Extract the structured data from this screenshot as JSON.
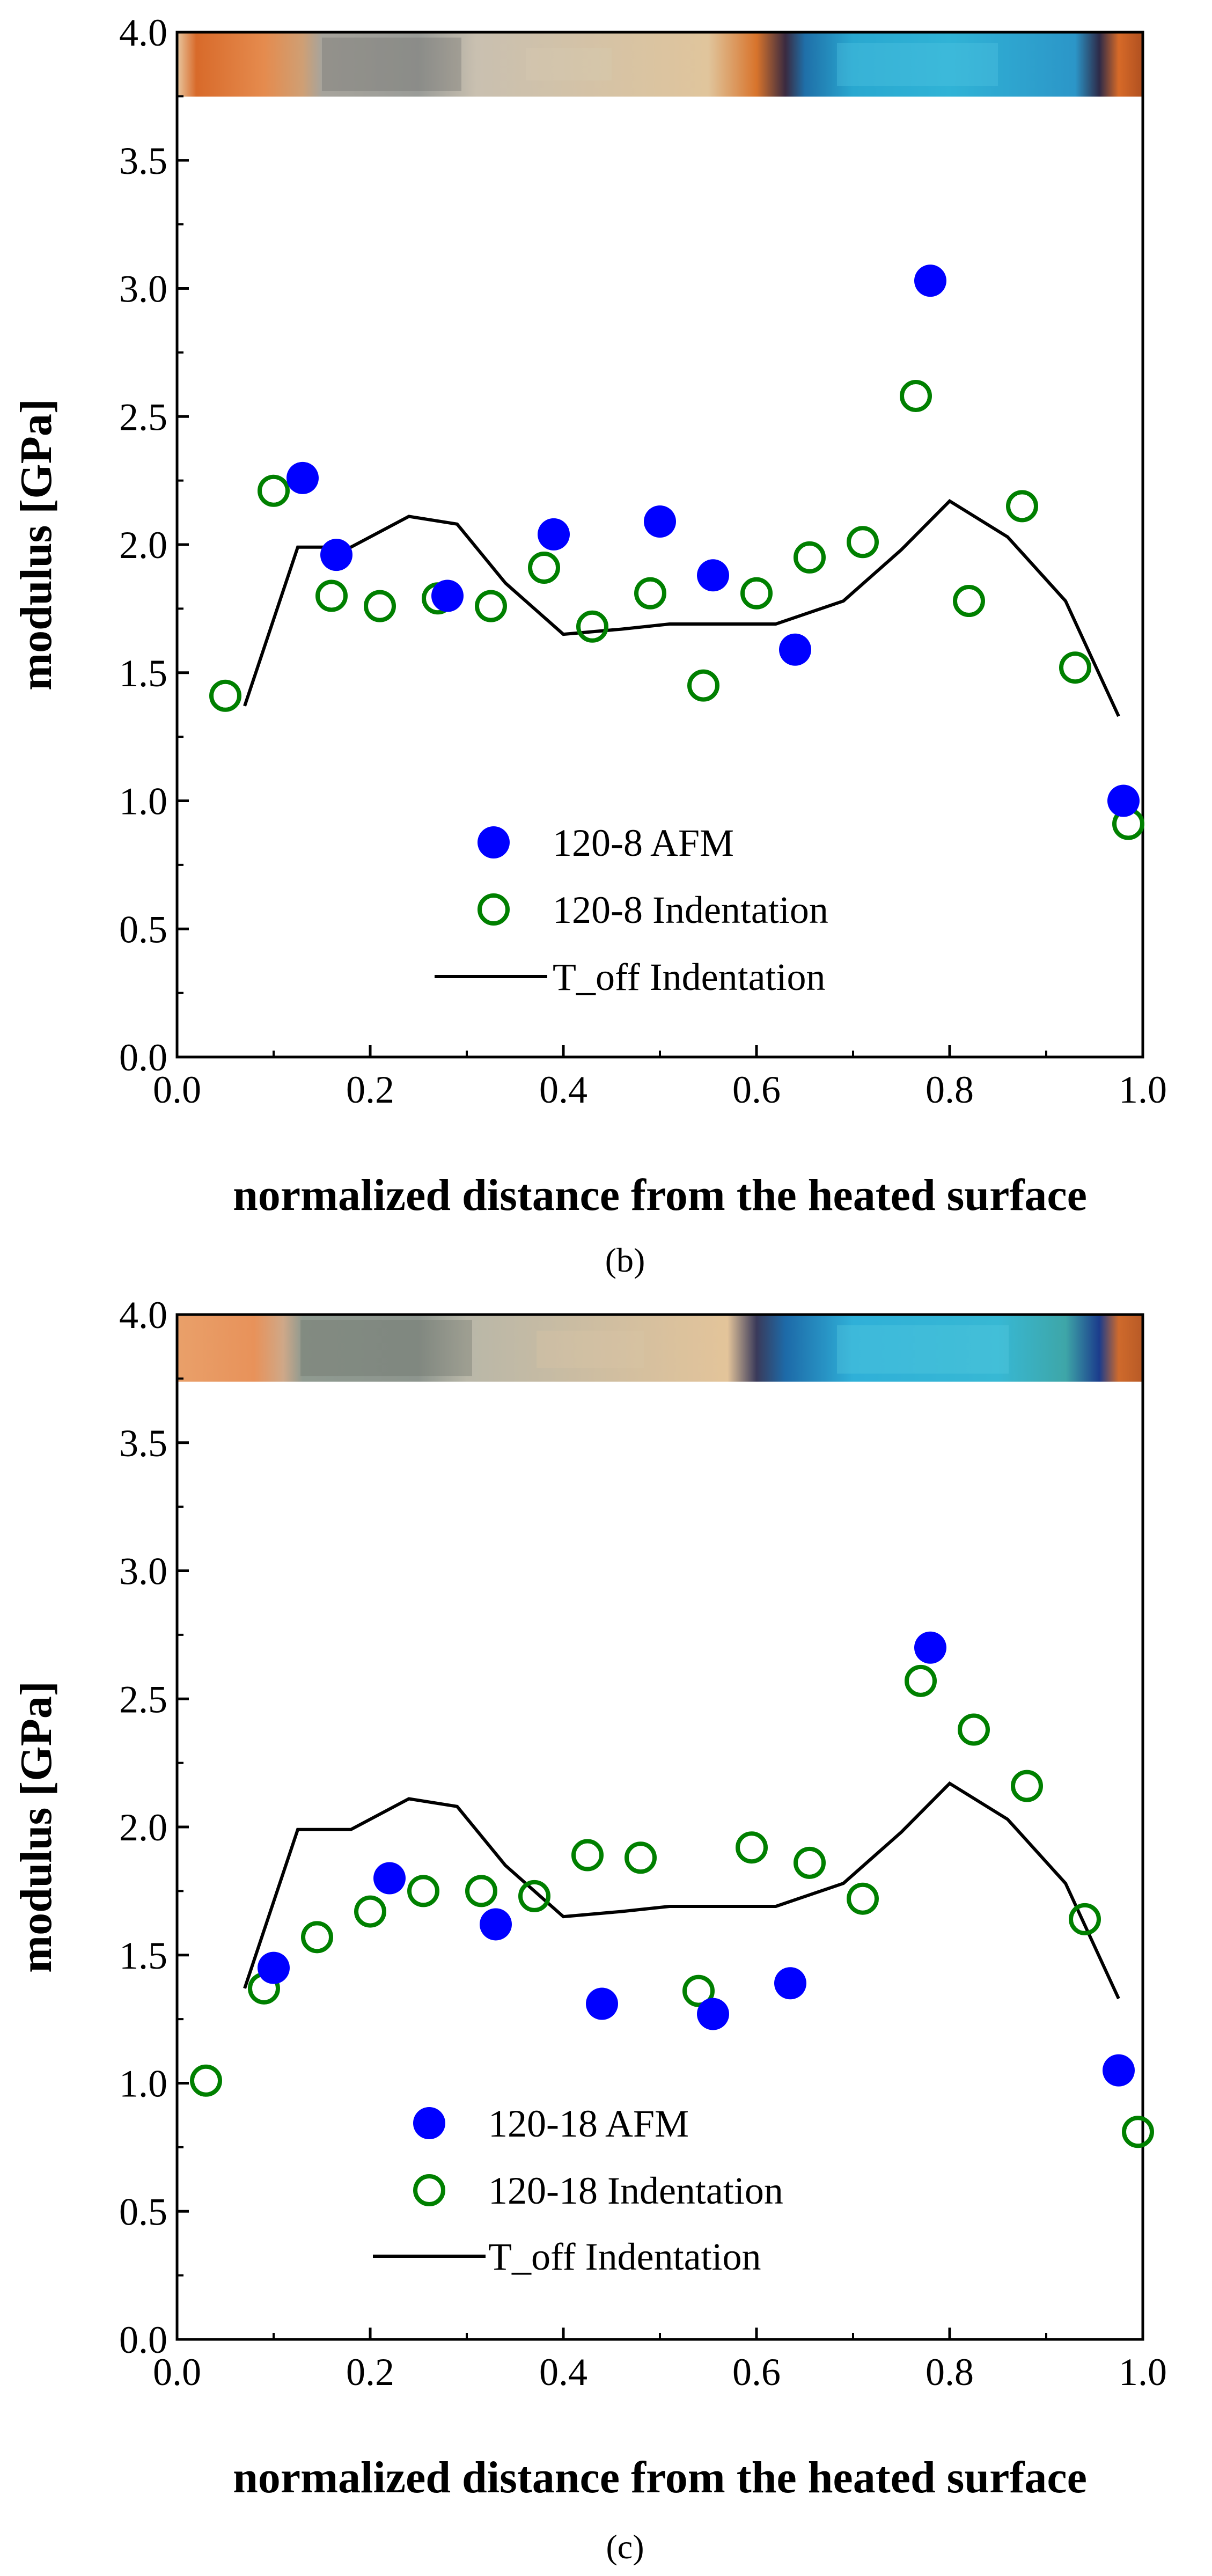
{
  "chart_data": [
    {
      "type": "scatter",
      "panel_label": "(b)",
      "xlabel": "normalized distance from the heated surface",
      "ylabel": "modulus [GPa]",
      "xlim": [
        0.0,
        1.0
      ],
      "ylim": [
        0.0,
        4.0
      ],
      "xticks": [
        "0.0",
        "0.2",
        "0.4",
        "0.6",
        "0.8",
        "1.0"
      ],
      "yticks": [
        "0.0",
        "0.5",
        "1.0",
        "1.5",
        "2.0",
        "2.5",
        "3.0",
        "3.5",
        "4.0"
      ],
      "legend_position": "lower-center",
      "series": [
        {
          "name": "120-8 AFM",
          "marker": "filled-circle",
          "color": "#0000ff",
          "x": [
            0.13,
            0.165,
            0.28,
            0.39,
            0.5,
            0.555,
            0.64,
            0.78,
            0.98
          ],
          "y": [
            2.26,
            1.96,
            1.8,
            2.04,
            2.09,
            1.88,
            1.59,
            3.03,
            1.0
          ]
        },
        {
          "name": "120-8 Indentation",
          "marker": "open-circle",
          "color": "#008000",
          "x": [
            0.05,
            0.1,
            0.16,
            0.21,
            0.27,
            0.325,
            0.38,
            0.43,
            0.49,
            0.545,
            0.6,
            0.655,
            0.71,
            0.765,
            0.82,
            0.875,
            0.93,
            0.985
          ],
          "y": [
            1.41,
            2.21,
            1.8,
            1.76,
            1.79,
            1.76,
            1.91,
            1.68,
            1.81,
            1.45,
            1.81,
            1.95,
            2.01,
            2.58,
            1.78,
            2.15,
            1.52,
            0.91
          ]
        },
        {
          "name": "T_off Indentation",
          "type": "line",
          "color": "#000000",
          "x": [
            0.07,
            0.125,
            0.18,
            0.24,
            0.29,
            0.34,
            0.4,
            0.46,
            0.51,
            0.57,
            0.62,
            0.69,
            0.75,
            0.8,
            0.86,
            0.92,
            0.975
          ],
          "y": [
            1.37,
            1.99,
            1.99,
            2.11,
            2.08,
            1.85,
            1.65,
            1.67,
            1.69,
            1.69,
            1.69,
            1.78,
            1.98,
            2.17,
            2.03,
            1.78,
            1.33
          ]
        }
      ]
    },
    {
      "type": "scatter",
      "panel_label": "(c)",
      "xlabel": "normalized distance from the heated surface",
      "ylabel": "modulus [GPa]",
      "xlim": [
        0.0,
        1.0
      ],
      "ylim": [
        0.0,
        4.0
      ],
      "xticks": [
        "0.0",
        "0.2",
        "0.4",
        "0.6",
        "0.8",
        "1.0"
      ],
      "yticks": [
        "0.0",
        "0.5",
        "1.0",
        "1.5",
        "2.0",
        "2.5",
        "3.0",
        "3.5",
        "4.0"
      ],
      "legend_position": "lower-center",
      "series": [
        {
          "name": "120-18 AFM",
          "marker": "filled-circle",
          "color": "#0000ff",
          "x": [
            0.1,
            0.22,
            0.33,
            0.44,
            0.555,
            0.635,
            0.78,
            0.975
          ],
          "y": [
            1.45,
            1.8,
            1.62,
            1.31,
            1.27,
            1.39,
            2.7,
            1.05
          ]
        },
        {
          "name": "120-18 Indentation",
          "marker": "open-circle",
          "color": "#008000",
          "x": [
            0.03,
            0.09,
            0.145,
            0.2,
            0.255,
            0.315,
            0.37,
            0.425,
            0.48,
            0.54,
            0.595,
            0.655,
            0.71,
            0.77,
            0.825,
            0.88,
            0.94,
            0.995
          ],
          "y": [
            1.01,
            1.37,
            1.57,
            1.67,
            1.75,
            1.75,
            1.73,
            1.89,
            1.88,
            1.36,
            1.92,
            1.86,
            1.72,
            2.57,
            2.38,
            2.16,
            1.64,
            0.81
          ]
        },
        {
          "name": "T_off Indentation",
          "type": "line",
          "color": "#000000",
          "x": [
            0.07,
            0.125,
            0.18,
            0.24,
            0.29,
            0.34,
            0.4,
            0.46,
            0.51,
            0.57,
            0.62,
            0.69,
            0.75,
            0.8,
            0.86,
            0.92,
            0.975
          ],
          "y": [
            1.37,
            1.99,
            1.99,
            2.11,
            2.08,
            1.85,
            1.65,
            1.67,
            1.69,
            1.69,
            1.69,
            1.78,
            1.98,
            2.17,
            2.03,
            1.78,
            1.33
          ]
        }
      ]
    }
  ]
}
